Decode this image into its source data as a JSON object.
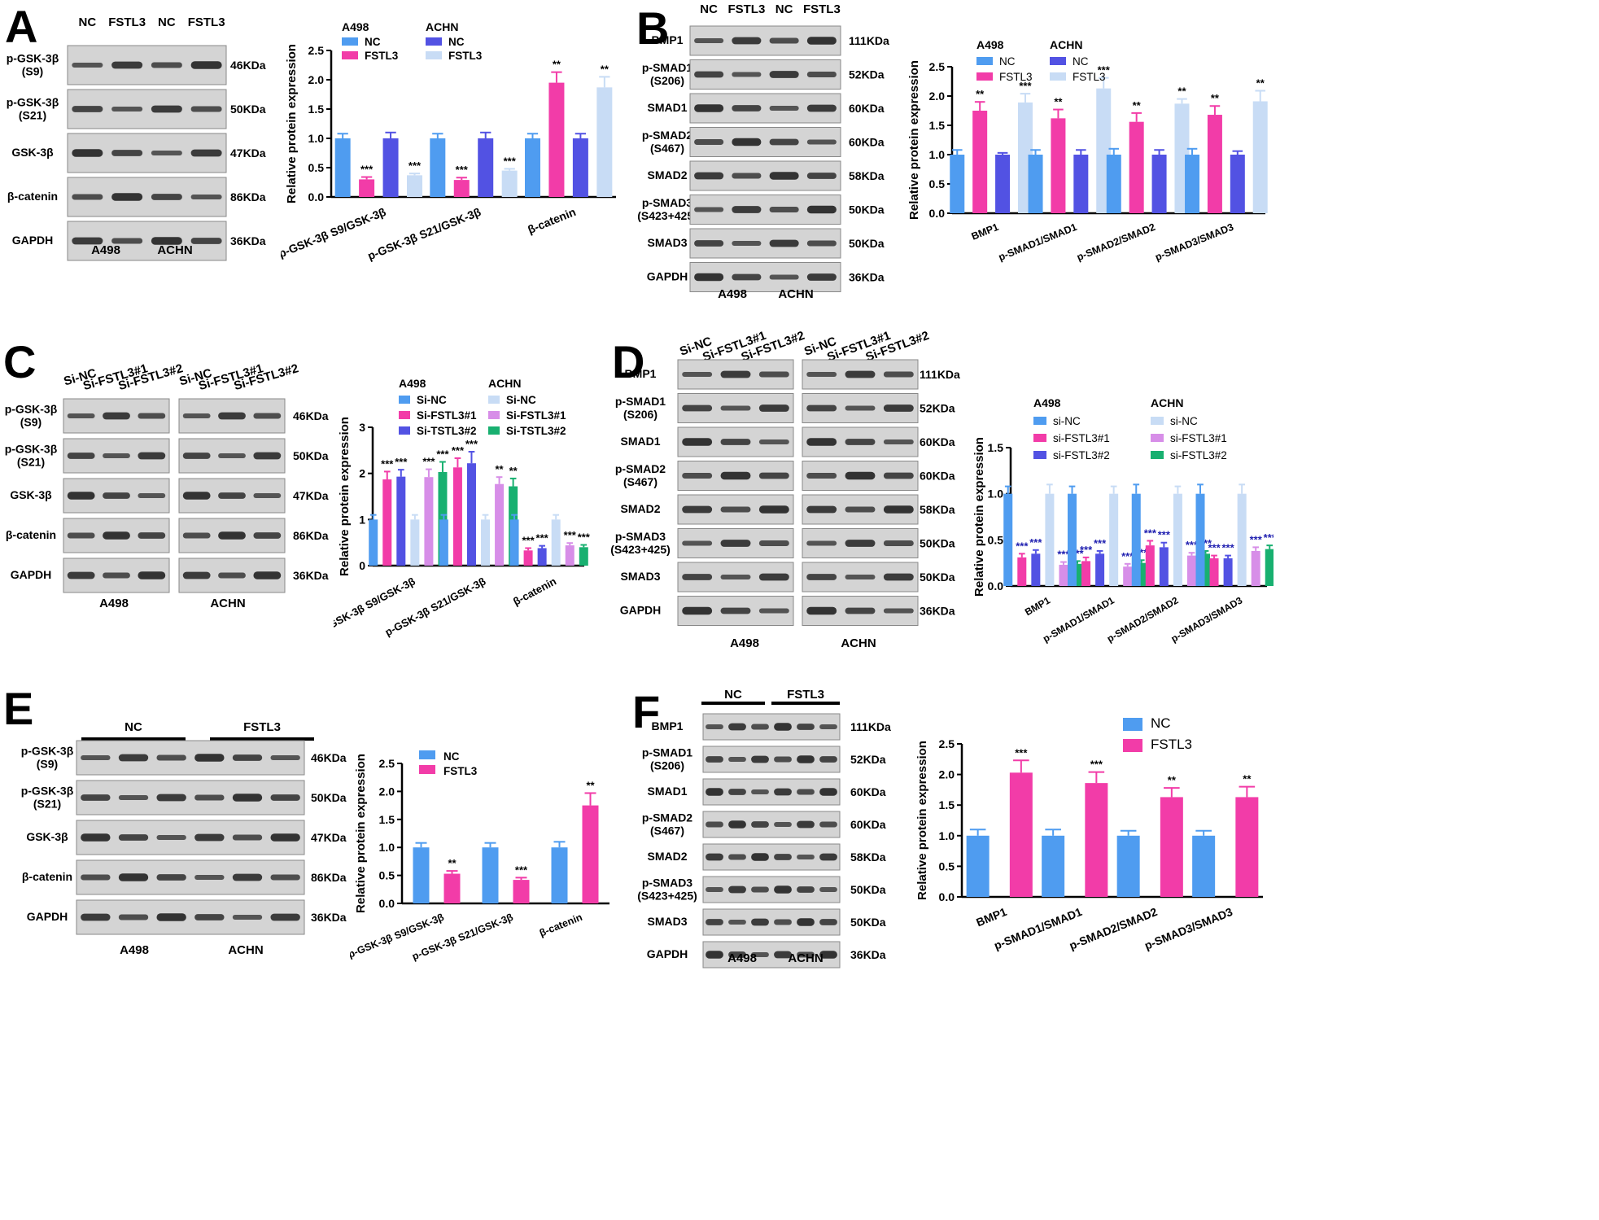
{
  "colors": {
    "blue": "#4f9cf0",
    "pink": "#f23ca8",
    "purple": "#5252e3",
    "light_blue": "#c8dcf5",
    "violet": "#d78ee8",
    "green": "#18b070",
    "blot_bg": "#d4d4d4",
    "band": "#2a2a2a",
    "axis": "#000000"
  },
  "panels": [
    {
      "id": "A",
      "letter": "A",
      "blot": {
        "lane_labels": [
          "NC",
          "FSTL3",
          "NC",
          "FSTL3"
        ],
        "rows": [
          {
            "label": "p-GSK-3β\n(S9)",
            "kda": "46KDa"
          },
          {
            "label": "p-GSK-3β\n(S21)",
            "kda": "50KDa"
          },
          {
            "label": "GSK-3β",
            "kda": "47KDa"
          },
          {
            "label": "β-catenin",
            "kda": "86KDa"
          },
          {
            "label": "GAPDH",
            "kda": "36KDa"
          }
        ],
        "bottom_labels": [
          "A498",
          "ACHN"
        ]
      }
    },
    {
      "id": "B",
      "letter": "B",
      "blot": {
        "lane_labels": [
          "NC",
          "FSTL3",
          "NC",
          "FSTL3"
        ],
        "rows": [
          {
            "label": "BMP1",
            "kda": "111KDa"
          },
          {
            "label": "p-SMAD1\n(S206)",
            "kda": "52KDa"
          },
          {
            "label": "SMAD1",
            "kda": "60KDa"
          },
          {
            "label": "p-SMAD2\n(S467)",
            "kda": "60KDa"
          },
          {
            "label": "SMAD2",
            "kda": "58KDa"
          },
          {
            "label": "p-SMAD3\n(S423+425)",
            "kda": "50KDa"
          },
          {
            "label": "SMAD3",
            "kda": "50KDa"
          },
          {
            "label": "GAPDH",
            "kda": "36KDa"
          }
        ],
        "bottom_labels": [
          "A498",
          "ACHN"
        ]
      }
    },
    {
      "id": "C",
      "letter": "C",
      "blot": {
        "lane_labels": [
          "Si-NC",
          "Si-FSTL3#1",
          "Si-FSTL3#2",
          "Si-NC",
          "Si-FSTL3#1",
          "Si-FSTL3#2"
        ],
        "rows": [
          {
            "label": "p-GSK-3β\n(S9)",
            "kda": "46KDa"
          },
          {
            "label": "p-GSK-3β\n(S21)",
            "kda": "50KDa"
          },
          {
            "label": "GSK-3β",
            "kda": "47KDa"
          },
          {
            "label": "β-catenin",
            "kda": "86KDa"
          },
          {
            "label": "GAPDH",
            "kda": "36KDa"
          }
        ],
        "bottom_labels": [
          "A498",
          "ACHN"
        ]
      }
    },
    {
      "id": "D",
      "letter": "D",
      "blot": {
        "lane_labels": [
          "Si-NC",
          "Si-FSTL3#1",
          "Si-FSTL3#2",
          "Si-NC",
          "Si-FSTL3#1",
          "Si-FSTL3#2"
        ],
        "rows": [
          {
            "label": "BMP1",
            "kda": "111KDa"
          },
          {
            "label": "p-SMAD1\n(S206)",
            "kda": "52KDa"
          },
          {
            "label": "SMAD1",
            "kda": "60KDa"
          },
          {
            "label": "p-SMAD2\n(S467)",
            "kda": "60KDa"
          },
          {
            "label": "SMAD2",
            "kda": "58KDa"
          },
          {
            "label": "p-SMAD3\n(S423+425)",
            "kda": "50KDa"
          },
          {
            "label": "SMAD3",
            "kda": "50KDa"
          },
          {
            "label": "GAPDH",
            "kda": "36KDa"
          }
        ],
        "bottom_labels": [
          "A498",
          "ACHN"
        ]
      }
    },
    {
      "id": "E",
      "letter": "E",
      "blot": {
        "group_labels": [
          "NC",
          "FSTL3"
        ],
        "rows": [
          {
            "label": "p-GSK-3β\n(S9)",
            "kda": "46KDa"
          },
          {
            "label": "p-GSK-3β\n(S21)",
            "kda": "50KDa"
          },
          {
            "label": "GSK-3β",
            "kda": "47KDa"
          },
          {
            "label": "β-catenin",
            "kda": "86KDa"
          },
          {
            "label": "GAPDH",
            "kda": "36KDa"
          }
        ],
        "bottom_labels": [
          "A498",
          "ACHN"
        ]
      }
    },
    {
      "id": "F",
      "letter": "F",
      "blot": {
        "group_labels": [
          "NC",
          "FSTL3"
        ],
        "rows": [
          {
            "label": "BMP1",
            "kda": "111KDa"
          },
          {
            "label": "p-SMAD1\n(S206)",
            "kda": "52KDa"
          },
          {
            "label": "SMAD1",
            "kda": "60KDa"
          },
          {
            "label": "p-SMAD2\n(S467)",
            "kda": "60KDa"
          },
          {
            "label": "SMAD2",
            "kda": "58KDa"
          },
          {
            "label": "p-SMAD3\n(S423+425)",
            "kda": "50KDa"
          },
          {
            "label": "SMAD3",
            "kda": "50KDa"
          },
          {
            "label": "GAPDH",
            "kda": "36KDa"
          }
        ],
        "bottom_labels": [
          "A498",
          "ACHN"
        ]
      }
    }
  ],
  "chart_data": [
    {
      "panel": "A",
      "type": "bar",
      "ylabel": "Relative protein expression",
      "ylim": [
        0,
        2.5
      ],
      "yticks": [
        0.0,
        0.5,
        1.0,
        1.5,
        2.0,
        2.5
      ],
      "categories": [
        "p-GSK-3β S9/GSK-3β",
        "p-GSK-3β S21/GSK-3β",
        "β-catenin"
      ],
      "legend_groups": [
        "A498",
        "ACHN"
      ],
      "series": [
        {
          "name": "NC",
          "group": "A498",
          "color": "blue",
          "values": [
            1.0,
            1.0,
            1.0
          ],
          "errors": [
            0.08,
            0.08,
            0.08
          ],
          "sig": [
            "",
            "",
            ""
          ]
        },
        {
          "name": "FSTL3",
          "group": "A498",
          "color": "pink",
          "values": [
            0.3,
            0.29,
            1.95
          ],
          "errors": [
            0.04,
            0.04,
            0.18
          ],
          "sig": [
            "***",
            "***",
            "**"
          ]
        },
        {
          "name": "NC",
          "group": "ACHN",
          "color": "purple",
          "values": [
            1.0,
            1.0,
            1.0
          ],
          "errors": [
            0.1,
            0.1,
            0.08
          ],
          "sig": [
            "",
            "",
            ""
          ]
        },
        {
          "name": "FSTL3",
          "group": "ACHN",
          "color": "light_blue",
          "values": [
            0.37,
            0.45,
            1.87
          ],
          "errors": [
            0.03,
            0.03,
            0.18
          ],
          "sig": [
            "***",
            "***",
            "**"
          ]
        }
      ]
    },
    {
      "panel": "B",
      "type": "bar",
      "ylabel": "Relative protein expression",
      "ylim": [
        0,
        2.5
      ],
      "yticks": [
        0.0,
        0.5,
        1.0,
        1.5,
        2.0,
        2.5
      ],
      "categories": [
        "BMP1",
        "p-SMAD1/SMAD1",
        "p-SMAD2/SMAD2",
        "p-SMAD3/SMAD3"
      ],
      "legend_groups": [
        "A498",
        "ACHN"
      ],
      "series": [
        {
          "name": "NC",
          "group": "A498",
          "color": "blue",
          "values": [
            1.0,
            1.0,
            1.0,
            1.0
          ],
          "errors": [
            0.08,
            0.08,
            0.1,
            0.1
          ],
          "sig": [
            "",
            "",
            "",
            ""
          ]
        },
        {
          "name": "FSTL3",
          "group": "A498",
          "color": "pink",
          "values": [
            1.75,
            1.62,
            1.56,
            1.68
          ],
          "errors": [
            0.15,
            0.15,
            0.15,
            0.15
          ],
          "sig": [
            "**",
            "**",
            "**",
            "**"
          ]
        },
        {
          "name": "NC",
          "group": "ACHN",
          "color": "purple",
          "values": [
            1.0,
            1.0,
            1.0,
            1.0
          ],
          "errors": [
            0.03,
            0.08,
            0.08,
            0.06
          ],
          "sig": [
            "",
            "",
            "",
            ""
          ]
        },
        {
          "name": "FSTL3",
          "group": "ACHN",
          "color": "light_blue",
          "values": [
            1.89,
            2.13,
            1.87,
            1.91
          ],
          "errors": [
            0.15,
            0.18,
            0.08,
            0.18
          ],
          "sig": [
            "***",
            "***",
            "**",
            "**"
          ]
        }
      ]
    },
    {
      "panel": "C",
      "type": "bar",
      "ylabel": "Relative protein expression",
      "ylim": [
        0,
        3
      ],
      "yticks": [
        0,
        1,
        2,
        3
      ],
      "categories": [
        "p-GSK-3β S9/GSK-3β",
        "p-GSK-3β S21/GSK-3β",
        "β-catenin"
      ],
      "legend_groups": [
        "A498",
        "ACHN"
      ],
      "series": [
        {
          "name": "Si-NC",
          "group": "A498",
          "color": "blue",
          "values": [
            1.0,
            1.0,
            1.0
          ],
          "errors": [
            0.1,
            0.1,
            0.1
          ],
          "sig": [
            "",
            "",
            ""
          ]
        },
        {
          "name": "Si-FSTL3#1",
          "group": "A498",
          "color": "pink",
          "values": [
            1.87,
            2.13,
            0.33
          ],
          "errors": [
            0.17,
            0.2,
            0.05
          ],
          "sig": [
            "***",
            "***",
            "***"
          ]
        },
        {
          "name": "Si-TSTL3#2",
          "group": "A498",
          "color": "purple",
          "values": [
            1.93,
            2.22,
            0.38
          ],
          "errors": [
            0.15,
            0.25,
            0.05
          ],
          "sig": [
            "***",
            "***",
            "***"
          ]
        },
        {
          "name": "Si-NC",
          "group": "ACHN",
          "color": "light_blue",
          "values": [
            1.0,
            1.0,
            1.0
          ],
          "errors": [
            0.1,
            0.1,
            0.1
          ],
          "sig": [
            "",
            "",
            ""
          ]
        },
        {
          "name": "Si-FSTL3#1",
          "group": "ACHN",
          "color": "violet",
          "values": [
            1.92,
            1.77,
            0.44
          ],
          "errors": [
            0.17,
            0.15,
            0.05
          ],
          "sig": [
            "***",
            "**",
            "***"
          ]
        },
        {
          "name": "Si-TSTL3#2",
          "group": "ACHN",
          "color": "green",
          "values": [
            2.03,
            1.72,
            0.4
          ],
          "errors": [
            0.22,
            0.17,
            0.05
          ],
          "sig": [
            "***",
            "**",
            "***"
          ]
        }
      ]
    },
    {
      "panel": "D",
      "type": "bar",
      "ylabel": "Relative protein expression",
      "ylim": [
        0,
        1.5
      ],
      "yticks": [
        0.0,
        0.5,
        1.0,
        1.5
      ],
      "categories": [
        "BMP1",
        "p-SMAD1/SMAD1",
        "p-SMAD2/SMAD2",
        "p-SMAD3/SMAD3"
      ],
      "legend_groups": [
        "A498",
        "ACHN"
      ],
      "series": [
        {
          "name": "si-NC",
          "group": "A498",
          "color": "blue",
          "values": [
            1.0,
            1.0,
            1.0,
            1.0
          ],
          "errors": [
            0.08,
            0.08,
            0.1,
            0.1
          ],
          "sig": [
            "",
            "",
            "",
            ""
          ]
        },
        {
          "name": "si-FSTL3#1",
          "group": "A498",
          "color": "pink",
          "values": [
            0.31,
            0.27,
            0.44,
            0.3
          ],
          "errors": [
            0.04,
            0.04,
            0.05,
            0.03
          ],
          "sig": [
            "***",
            "***",
            "***",
            "***"
          ]
        },
        {
          "name": "si-FSTL3#2",
          "group": "A498",
          "color": "purple",
          "values": [
            0.35,
            0.35,
            0.42,
            0.3
          ],
          "errors": [
            0.04,
            0.03,
            0.05,
            0.03
          ],
          "sig": [
            "***",
            "***",
            "***",
            "***"
          ]
        },
        {
          "name": "si-NC",
          "group": "ACHN",
          "color": "light_blue",
          "values": [
            1.0,
            1.0,
            1.0,
            1.0
          ],
          "errors": [
            0.1,
            0.08,
            0.08,
            0.1
          ],
          "sig": [
            "",
            "",
            "",
            ""
          ]
        },
        {
          "name": "si-FSTL3#1",
          "group": "ACHN",
          "color": "violet",
          "values": [
            0.23,
            0.21,
            0.33,
            0.38
          ],
          "errors": [
            0.03,
            0.03,
            0.03,
            0.04
          ],
          "sig": [
            "***",
            "***",
            "***",
            "***"
          ]
        },
        {
          "name": "si-FSTL3#2",
          "group": "ACHN",
          "color": "green",
          "values": [
            0.24,
            0.25,
            0.35,
            0.4
          ],
          "errors": [
            0.03,
            0.03,
            0.03,
            0.04
          ],
          "sig": [
            "***",
            "***",
            "***",
            "***"
          ]
        }
      ]
    },
    {
      "panel": "E",
      "type": "bar",
      "ylabel": "Relative protein expression",
      "ylim": [
        0,
        2.5
      ],
      "yticks": [
        0.0,
        0.5,
        1.0,
        1.5,
        2.0,
        2.5
      ],
      "categories": [
        "p-GSK-3β S9/GSK-3β",
        "p-GSK-3β S21/GSK-3β",
        "β-catenin"
      ],
      "series": [
        {
          "name": "NC",
          "color": "blue",
          "values": [
            1.0,
            1.0,
            1.0
          ],
          "errors": [
            0.08,
            0.08,
            0.1
          ],
          "sig": [
            "",
            "",
            ""
          ]
        },
        {
          "name": "FSTL3",
          "color": "pink",
          "values": [
            0.53,
            0.42,
            1.75
          ],
          "errors": [
            0.05,
            0.04,
            0.22
          ],
          "sig": [
            "**",
            "***",
            "**"
          ]
        }
      ]
    },
    {
      "panel": "F",
      "type": "bar",
      "ylabel": "Relative protein expression",
      "ylim": [
        0,
        2.5
      ],
      "yticks": [
        0.0,
        0.5,
        1.0,
        1.5,
        2.0,
        2.5
      ],
      "categories": [
        "BMP1",
        "p-SMAD1/SMAD1",
        "p-SMAD2/SMAD2",
        "p-SMAD3/SMAD3"
      ],
      "series": [
        {
          "name": "NC",
          "color": "blue",
          "values": [
            1.0,
            1.0,
            1.0,
            1.0
          ],
          "errors": [
            0.1,
            0.1,
            0.08,
            0.08
          ],
          "sig": [
            "",
            "",
            "",
            ""
          ]
        },
        {
          "name": "FSTL3",
          "color": "pink",
          "values": [
            2.03,
            1.86,
            1.63,
            1.63
          ],
          "errors": [
            0.2,
            0.18,
            0.15,
            0.17
          ],
          "sig": [
            "***",
            "***",
            "**",
            "**"
          ]
        }
      ]
    }
  ]
}
